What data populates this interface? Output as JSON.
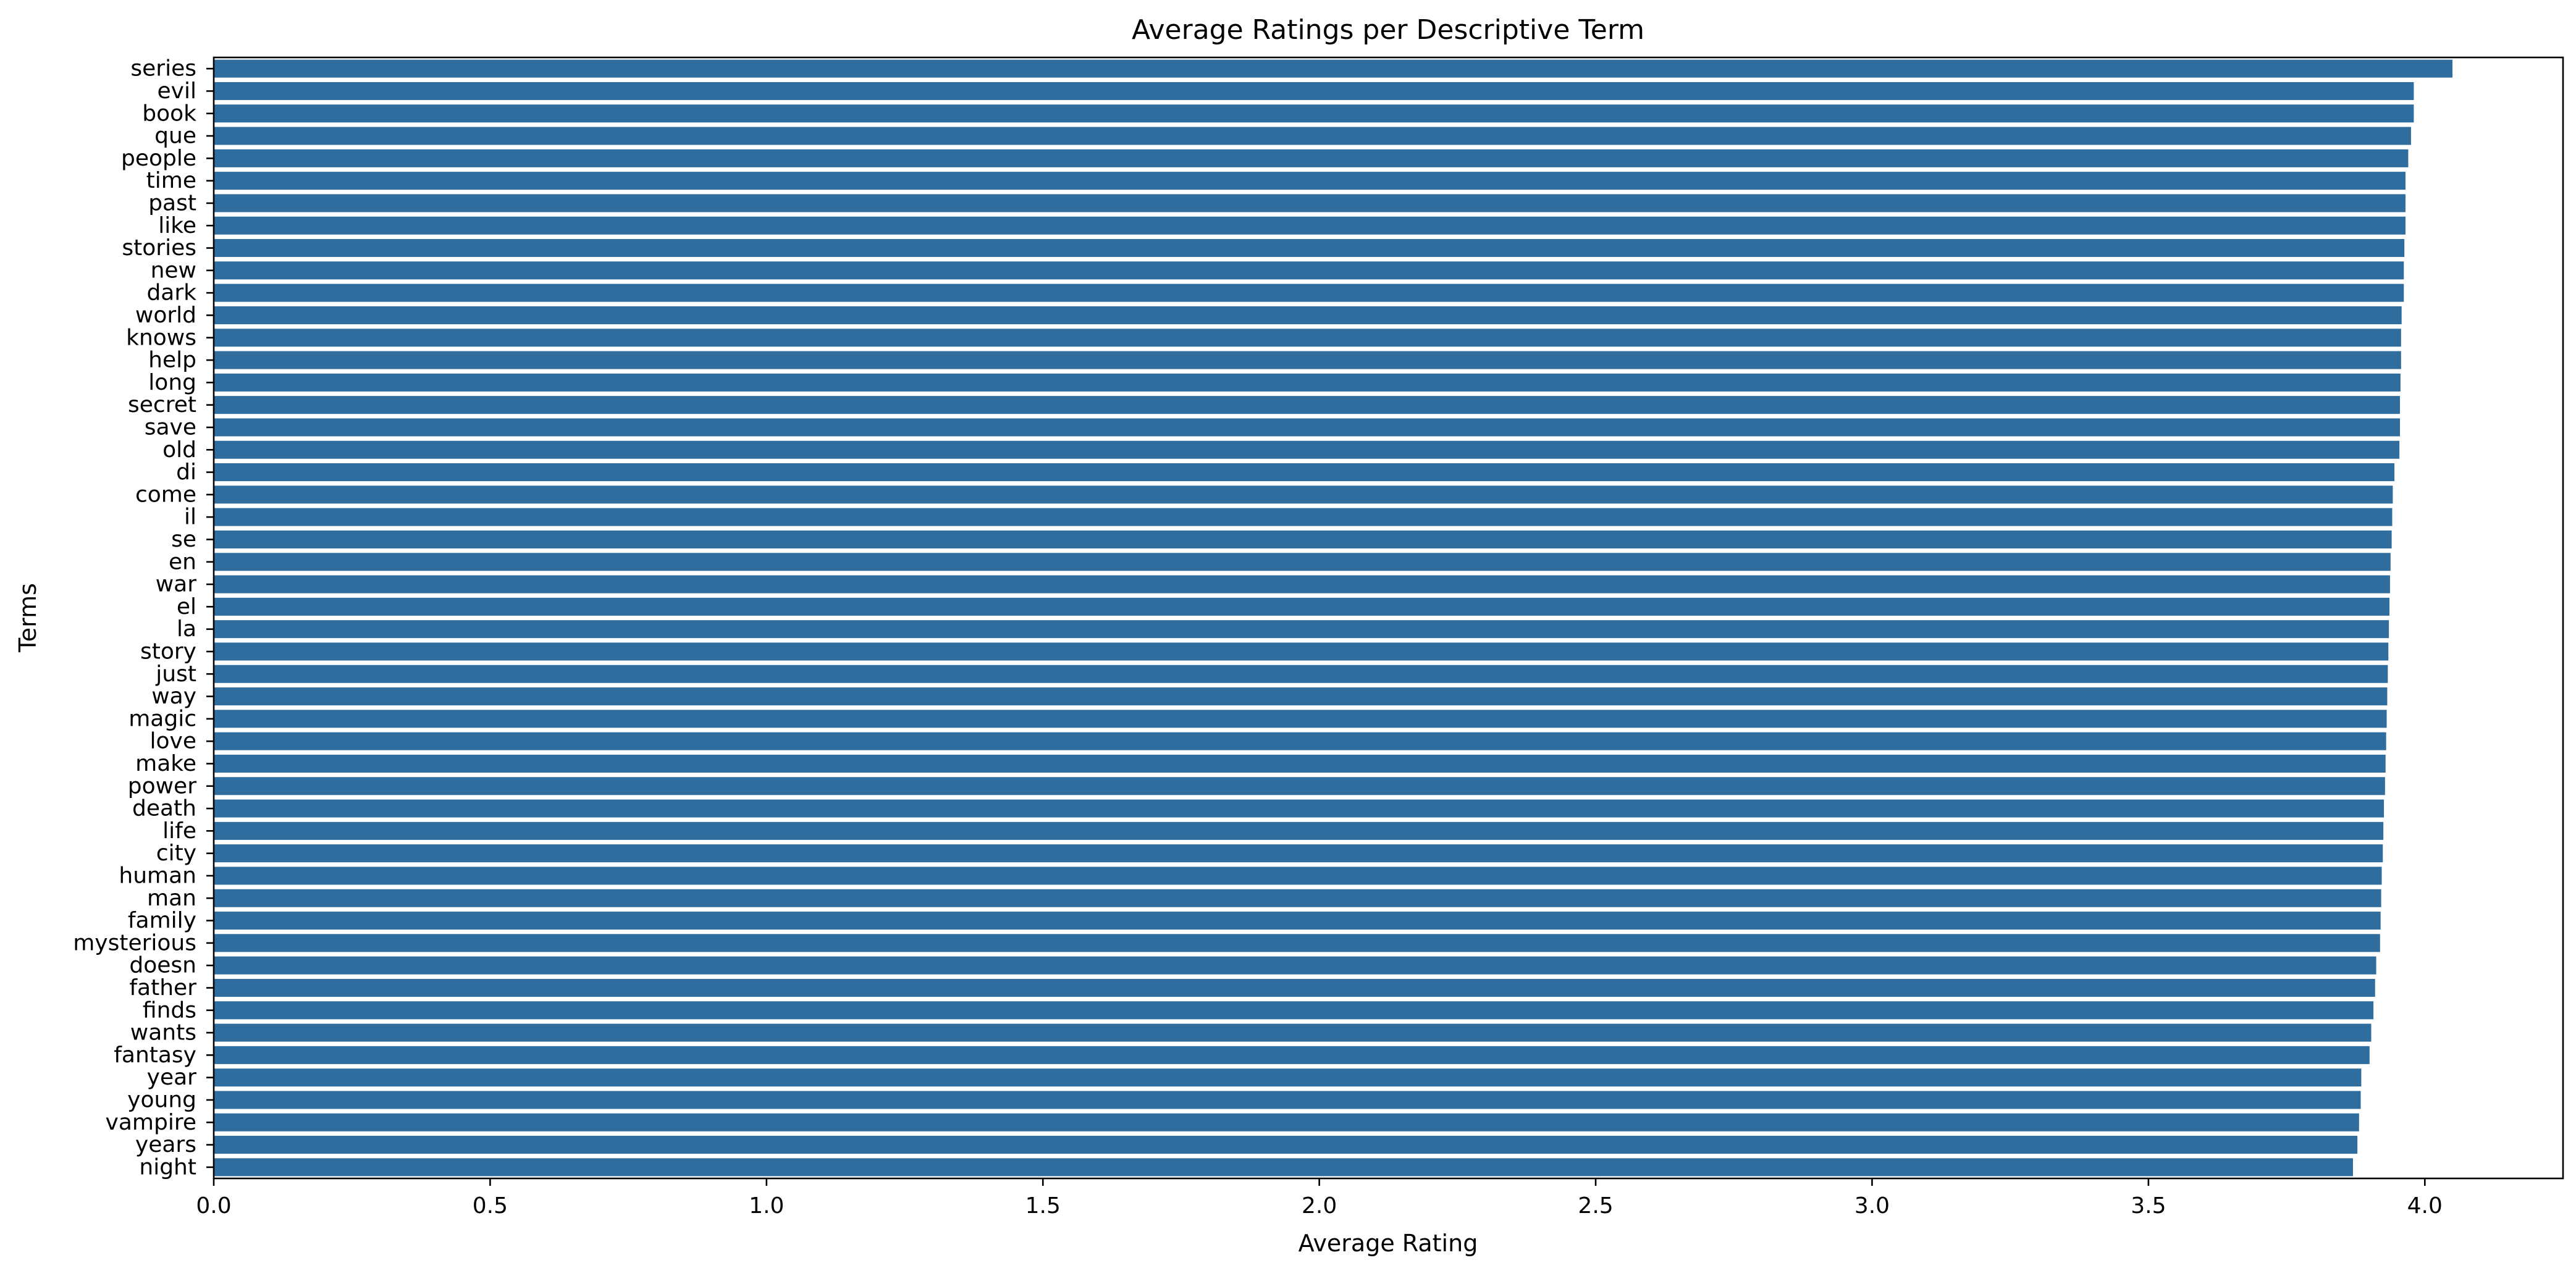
{
  "chart_data": {
    "type": "bar",
    "orientation": "horizontal",
    "title": "Average Ratings per Descriptive Term",
    "xlabel": "Average Rating",
    "ylabel": "Terms",
    "xlim": [
      0,
      4.25
    ],
    "xticks": [
      "0.0",
      "0.5",
      "1.0",
      "1.5",
      "2.0",
      "2.5",
      "3.0",
      "3.5",
      "4.0"
    ],
    "grid": false,
    "bar_color": "#2f6d9e",
    "categories": [
      "series",
      "evil",
      "book",
      "que",
      "people",
      "time",
      "past",
      "like",
      "stories",
      "new",
      "dark",
      "world",
      "knows",
      "help",
      "long",
      "secret",
      "save",
      "old",
      "di",
      "come",
      "il",
      "se",
      "en",
      "war",
      "el",
      "la",
      "story",
      "just",
      "way",
      "magic",
      "love",
      "make",
      "power",
      "death",
      "life",
      "city",
      "human",
      "man",
      "family",
      "mysterious",
      "doesn",
      "father",
      "finds",
      "wants",
      "fantasy",
      "year",
      "young",
      "vampire",
      "years",
      "night"
    ],
    "values": [
      4.05,
      3.98,
      3.98,
      3.975,
      3.97,
      3.965,
      3.965,
      3.965,
      3.963,
      3.962,
      3.962,
      3.958,
      3.957,
      3.957,
      3.956,
      3.955,
      3.955,
      3.954,
      3.945,
      3.942,
      3.941,
      3.94,
      3.938,
      3.937,
      3.936,
      3.935,
      3.934,
      3.933,
      3.932,
      3.931,
      3.93,
      3.929,
      3.928,
      3.926,
      3.925,
      3.924,
      3.922,
      3.921,
      3.92,
      3.919,
      3.912,
      3.91,
      3.907,
      3.903,
      3.9,
      3.885,
      3.884,
      3.881,
      3.878,
      3.87
    ]
  }
}
